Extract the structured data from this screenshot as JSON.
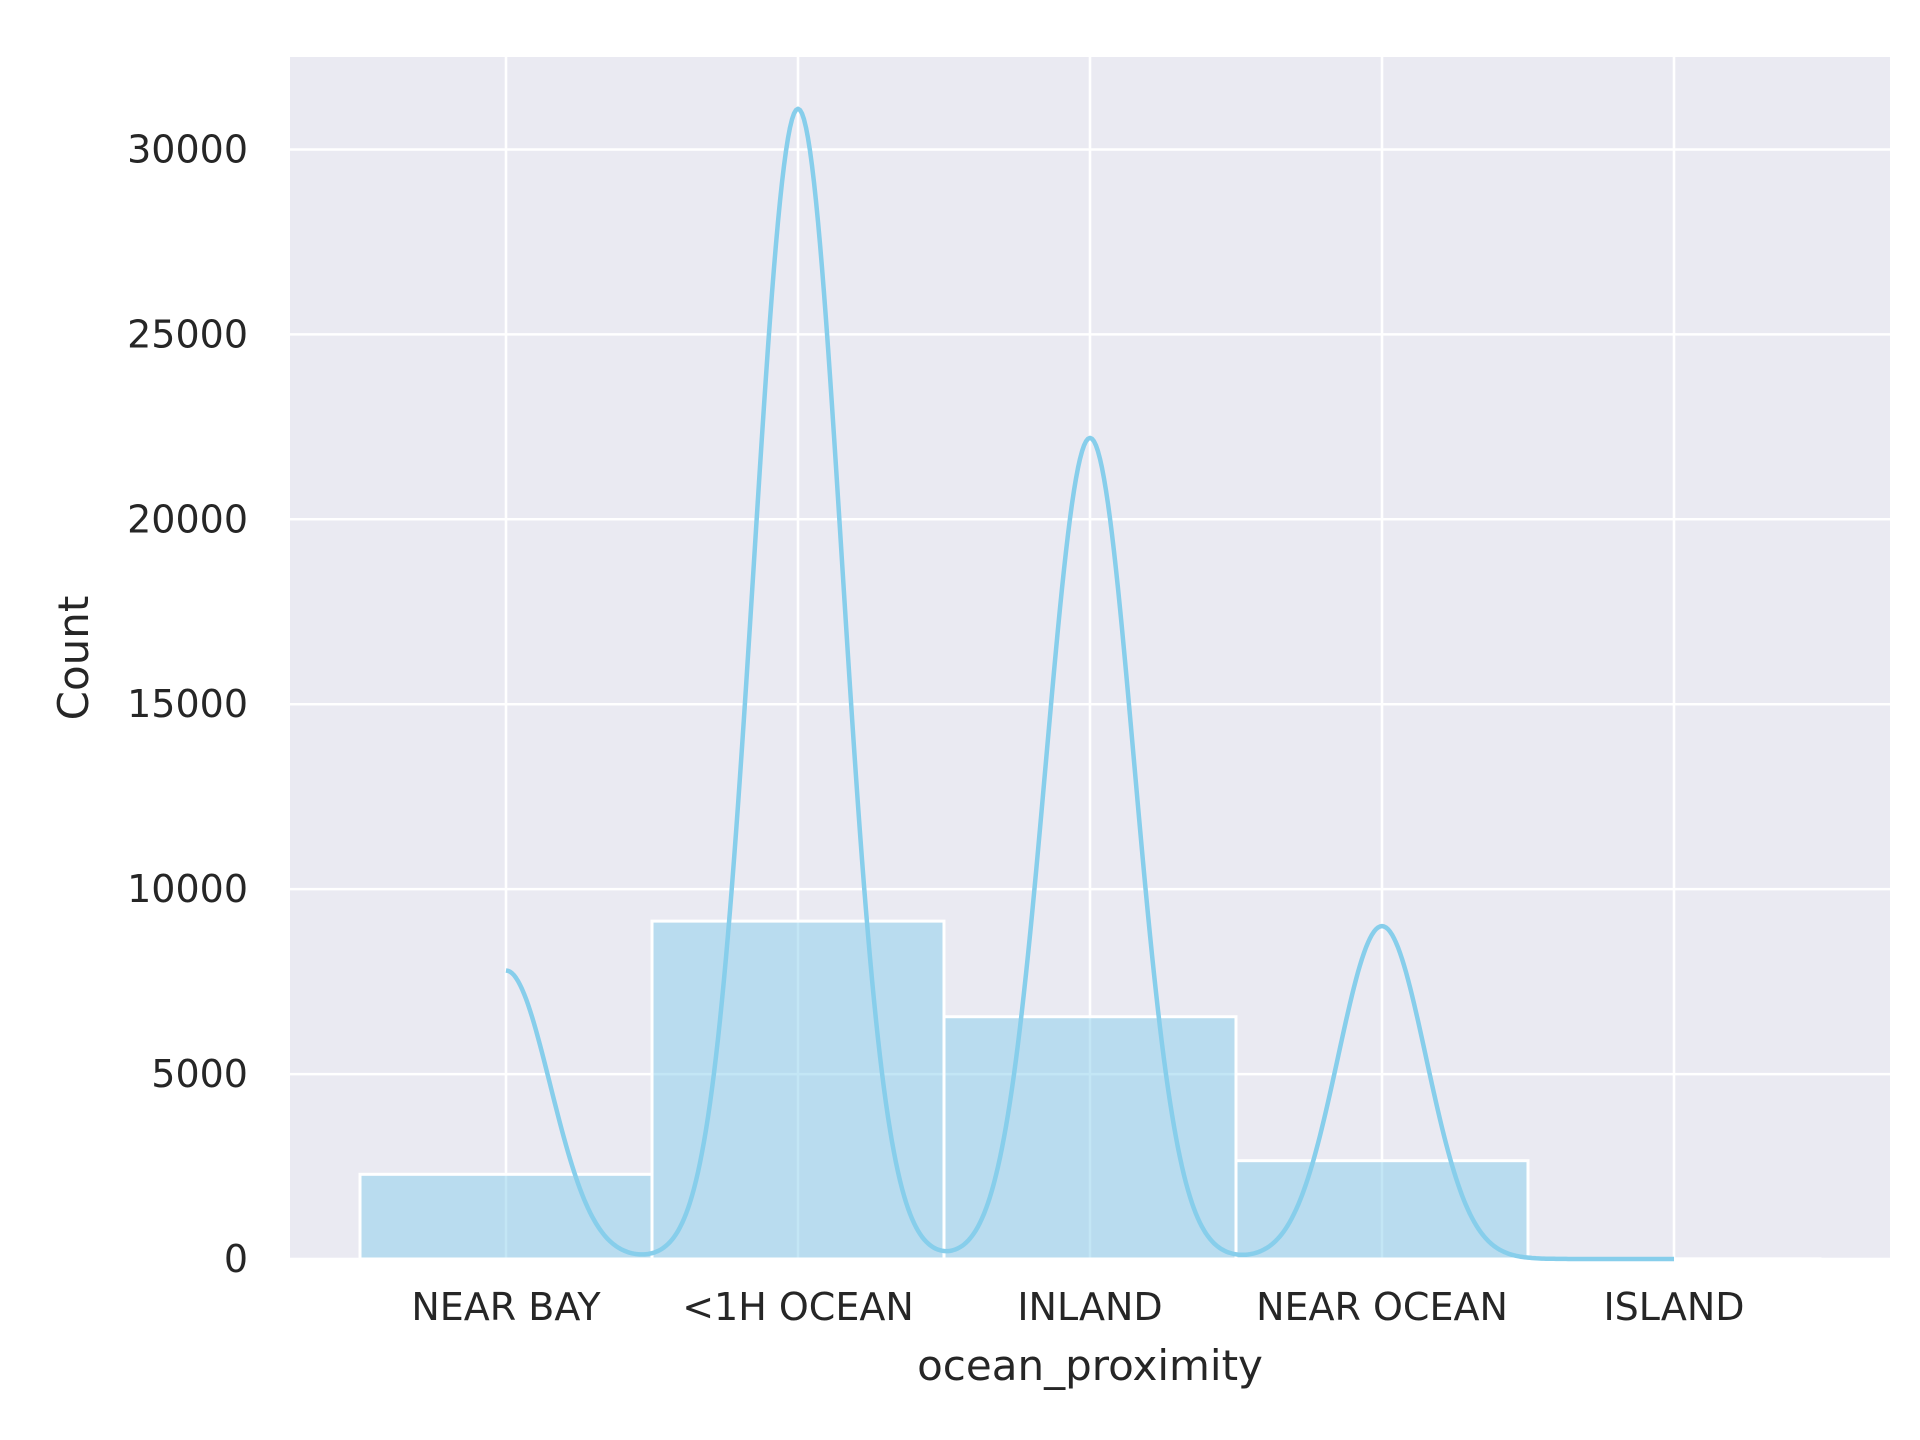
{
  "chart_data": {
    "type": "bar",
    "title": "",
    "xlabel": "ocean_proximity",
    "ylabel": "Count",
    "categories": [
      "NEAR BAY",
      "<1H OCEAN",
      "INLAND",
      "NEAR OCEAN",
      "ISLAND"
    ],
    "values": [
      2290,
      9136,
      6551,
      2658,
      5
    ],
    "ylim": [
      0,
      32500
    ],
    "yticks": [
      0,
      5000,
      10000,
      15000,
      20000,
      25000,
      30000
    ],
    "ytick_labels": [
      "0",
      "5000",
      "10000",
      "15000",
      "20000",
      "25000",
      "30000"
    ],
    "grid": true,
    "kde": {
      "visible": true,
      "peaks": [
        7800,
        31100,
        22200,
        9000,
        0
      ]
    },
    "colors": {
      "background": "#eaeaf2",
      "grid": "#ffffff",
      "bar_fill": "#87ceeb",
      "bar_edge": "#ffffff",
      "kde_line": "#87ceeb"
    }
  }
}
